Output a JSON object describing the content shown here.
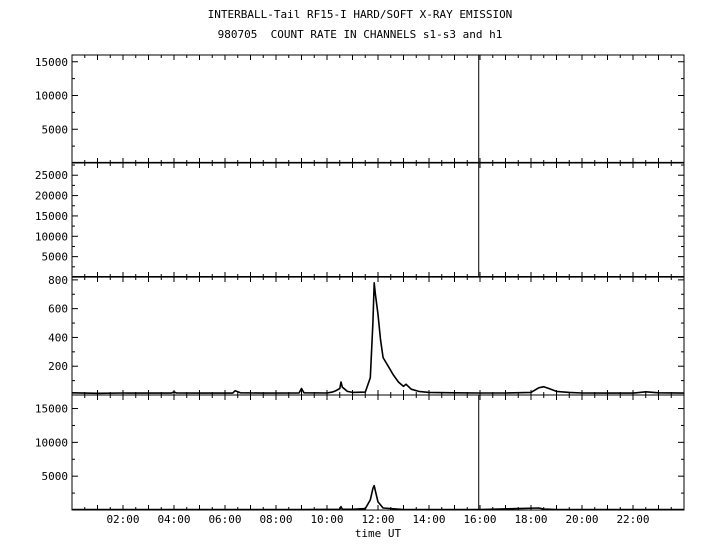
{
  "header": {
    "title": "INTERBALL-Tail RF15-I HARD/SOFT X-RAY EMISSION",
    "subtitle": "980705  COUNT RATE IN CHANNELS s1-s3 and h1"
  },
  "chart_data": {
    "type": "line",
    "xlabel": "time UT",
    "xlim": [
      0,
      24
    ],
    "x_tick_labels": [
      "02:00",
      "04:00",
      "06:00",
      "08:00",
      "10:00",
      "12:00",
      "14:00",
      "16:00",
      "18:00",
      "20:00",
      "22:00"
    ],
    "x_tick_values": [
      2,
      4,
      6,
      8,
      10,
      12,
      14,
      16,
      18,
      20,
      22
    ],
    "panels": [
      {
        "channel": "s1",
        "ylim": [
          0,
          16000
        ],
        "y_tick_labels": [
          "15000",
          "10000",
          "5000"
        ],
        "y_tick_values": [
          15000,
          10000,
          5000
        ],
        "series": [
          {
            "x": [
              0,
              4,
              8,
              11.8,
              16,
              20,
              24
            ],
            "values": [
              40,
              40,
              40,
              50,
              40,
              40,
              40
            ]
          }
        ],
        "vertical_line_x": 15.95
      },
      {
        "channel": "s2",
        "ylim": [
          0,
          28000
        ],
        "y_tick_labels": [
          "25000",
          "20000",
          "15000",
          "10000",
          "5000"
        ],
        "y_tick_values": [
          25000,
          20000,
          15000,
          10000,
          5000
        ],
        "series": [
          {
            "x": [
              0,
              4,
              8,
              11.8,
              16,
              20,
              24
            ],
            "values": [
              40,
              40,
              40,
              50,
              40,
              40,
              40
            ]
          }
        ],
        "vertical_line_x": 15.95
      },
      {
        "channel": "s3",
        "ylim": [
          0,
          820
        ],
        "y_tick_labels": [
          "800",
          "600",
          "400",
          "200"
        ],
        "y_tick_values": [
          800,
          600,
          400,
          200
        ],
        "series": [
          {
            "x": [
              0.0,
              1.0,
              2.0,
              3.0,
              3.9,
              4.0,
              4.1,
              5.0,
              6.3,
              6.4,
              6.6,
              7.5,
              8.9,
              9.0,
              9.1,
              10.0,
              10.2,
              10.35,
              10.5,
              10.55,
              10.6,
              10.8,
              11.0,
              11.5,
              11.7,
              11.8,
              11.85,
              11.9,
              12.0,
              12.1,
              12.2,
              12.4,
              12.6,
              12.8,
              13.0,
              13.1,
              13.3,
              13.6,
              14.0,
              15.0,
              16.0,
              17.0,
              18.0,
              18.3,
              18.5,
              18.7,
              19.0,
              19.5,
              20.0,
              21.0,
              22.0,
              22.5,
              23.0,
              24.0
            ],
            "values": [
              15,
              12,
              14,
              13,
              13,
              22,
              14,
              13,
              13,
              30,
              15,
              13,
              14,
              45,
              15,
              14,
              20,
              30,
              45,
              90,
              55,
              25,
              18,
              20,
              120,
              500,
              780,
              700,
              560,
              380,
              260,
              200,
              140,
              90,
              60,
              75,
              40,
              25,
              18,
              15,
              14,
              14,
              18,
              50,
              58,
              45,
              25,
              18,
              14,
              13,
              13,
              22,
              15,
              13
            ]
          }
        ]
      },
      {
        "channel": "h1",
        "ylim": [
          0,
          17000
        ],
        "y_tick_labels": [
          "15000",
          "10000",
          "5000"
        ],
        "y_tick_values": [
          15000,
          10000,
          5000
        ],
        "series": [
          {
            "x": [
              0,
              6,
              9,
              10.5,
              10.55,
              10.6,
              11.0,
              11.5,
              11.7,
              11.8,
              11.85,
              11.9,
              12.0,
              12.2,
              13.0,
              16.0,
              18.3,
              18.5,
              19.0,
              24.0
            ],
            "values": [
              60,
              60,
              80,
              100,
              500,
              120,
              100,
              200,
              1500,
              3200,
              3600,
              2800,
              1200,
              300,
              80,
              60,
              300,
              150,
              60,
              60
            ]
          }
        ],
        "vertical_line_x": 15.95
      }
    ]
  }
}
